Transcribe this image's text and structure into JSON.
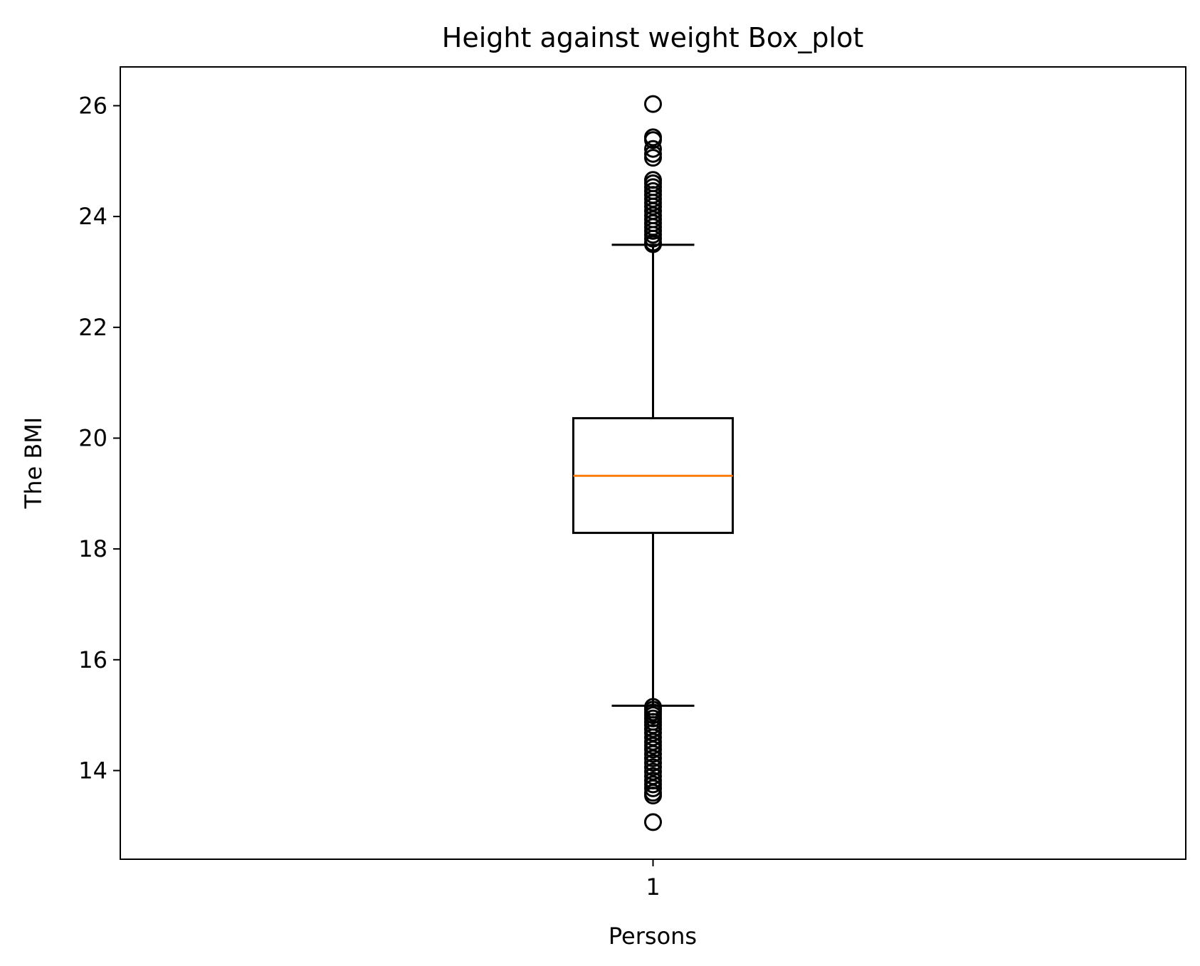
{
  "chart_data": {
    "type": "box",
    "title": "Height against weight Box_plot",
    "xlabel": "Persons",
    "ylabel": "The BMI",
    "categories": [
      "1"
    ],
    "ylim": [
      12.4,
      26.7
    ],
    "yticks": [
      14,
      16,
      18,
      20,
      22,
      24,
      26
    ],
    "grid": false,
    "boxes": [
      {
        "category": "1",
        "whisker_low": 15.17,
        "q1": 18.29,
        "median": 19.32,
        "q3": 20.36,
        "whisker_high": 23.49,
        "outliers": [
          26.03,
          25.43,
          25.38,
          25.22,
          25.13,
          25.06,
          24.66,
          24.6,
          24.53,
          24.46,
          24.39,
          24.32,
          24.25,
          24.18,
          24.1,
          24.02,
          23.95,
          23.88,
          23.81,
          23.74,
          23.67,
          23.6,
          23.53,
          23.5,
          15.15,
          15.1,
          15.05,
          15.0,
          14.94,
          14.88,
          14.82,
          14.75,
          14.68,
          14.6,
          14.52,
          14.45,
          14.38,
          14.3,
          14.22,
          14.14,
          14.06,
          13.98,
          13.9,
          13.82,
          13.75,
          13.68,
          13.6,
          13.55,
          13.07
        ]
      }
    ],
    "colors": {
      "box": "#000000",
      "median": "#ff7f0e",
      "axes": "#000000"
    }
  }
}
